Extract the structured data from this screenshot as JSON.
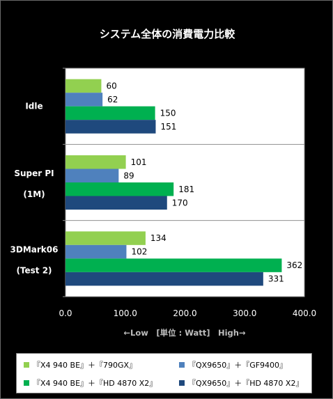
{
  "chart_data": {
    "type": "bar",
    "orientation": "horizontal",
    "title": "システム全体の消費電力比較",
    "xlabel": "←Low　[単位 : Watt]　High→",
    "ylabel": "",
    "xlim": [
      0,
      400
    ],
    "xticks": [
      "0.0",
      "100.0",
      "200.0",
      "300.0",
      "400.0"
    ],
    "grid": true,
    "legend_position": "bottom",
    "categories": [
      {
        "line1": "Idle",
        "line2": ""
      },
      {
        "line1": "Super PI",
        "line2": "(1M)"
      },
      {
        "line1": "3DMark06",
        "line2": "(Test 2)"
      }
    ],
    "series": [
      {
        "name": "『X4 940 BE』＋『790GX』",
        "color": "#92d050",
        "values": [
          60,
          101,
          134
        ]
      },
      {
        "name": "『QX9650』＋『GF9400』",
        "color": "#4f81bd",
        "values": [
          62,
          89,
          102
        ]
      },
      {
        "name": "『X4 940 BE』＋『HD 4870 X2』",
        "color": "#00b050",
        "values": [
          150,
          181,
          362
        ]
      },
      {
        "name": "『QX9650』＋『HD 4870 X2』",
        "color": "#1f497d",
        "values": [
          151,
          170,
          331
        ]
      }
    ]
  }
}
